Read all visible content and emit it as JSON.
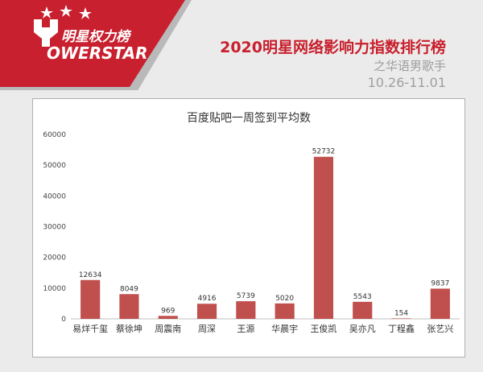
{
  "brand": {
    "name": "明星权力榜",
    "sub": "OWERSTAR"
  },
  "header": {
    "title": "2020明星网络影响力指数排行榜",
    "subtitle": "之华语男歌手",
    "date_range": "10.26-11.01"
  },
  "colors": {
    "brand_red": "#c8202e",
    "bar": "#c0504d"
  },
  "chart_data": {
    "type": "bar",
    "title": "百度贴吧一周签到平均数",
    "categories": [
      "易烊千玺",
      "蔡徐坤",
      "周震南",
      "周深",
      "王源",
      "华晨宇",
      "王俊凯",
      "吴亦凡",
      "丁程鑫",
      "张艺兴"
    ],
    "values": [
      12634,
      8049,
      969,
      4916,
      5739,
      5020,
      52732,
      5543,
      154,
      9837
    ],
    "ylim": [
      0,
      60000
    ],
    "yticks": [
      0,
      10000,
      20000,
      30000,
      40000,
      50000,
      60000
    ],
    "grid": false,
    "legend": "none"
  }
}
